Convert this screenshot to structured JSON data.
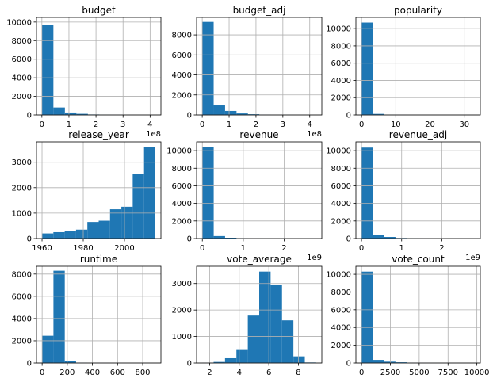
{
  "chart_data": [
    {
      "type": "bar",
      "title": "budget",
      "offset_text": "1e8",
      "xlim": [
        -0.2,
        4.4
      ],
      "ylim": [
        0,
        10500
      ],
      "xticks": [
        0,
        1,
        2,
        3,
        4
      ],
      "xtick_labels": [
        "0",
        "1",
        "2",
        "3",
        "4"
      ],
      "yticks": [
        0,
        2000,
        4000,
        6000,
        8000,
        10000
      ],
      "ytick_labels": [
        "0",
        "2000",
        "4000",
        "6000",
        "8000",
        "10000"
      ],
      "bin_edges": [
        0,
        0.425,
        0.85,
        1.275,
        1.7,
        2.125,
        2.55,
        2.975,
        3.4,
        3.825,
        4.25
      ],
      "values": [
        9700,
        800,
        260,
        120,
        50,
        20,
        8,
        3,
        1,
        1
      ],
      "grid": true,
      "color": "#1f77b4"
    },
    {
      "type": "bar",
      "title": "budget_adj",
      "offset_text": "1e8",
      "xlim": [
        -0.21,
        4.45
      ],
      "ylim": [
        0,
        9750
      ],
      "xticks": [
        0,
        1,
        2,
        3,
        4
      ],
      "xtick_labels": [
        "0",
        "1",
        "2",
        "3",
        "4"
      ],
      "yticks": [
        0,
        2000,
        4000,
        6000,
        8000
      ],
      "ytick_labels": [
        "0",
        "2000",
        "4000",
        "6000",
        "8000"
      ],
      "bin_edges": [
        0,
        0.425,
        0.85,
        1.275,
        1.7,
        2.125,
        2.55,
        2.975,
        3.4,
        3.825,
        4.25
      ],
      "values": [
        9300,
        950,
        400,
        150,
        70,
        30,
        10,
        5,
        2,
        1
      ],
      "grid": true,
      "color": "#1f77b4"
    },
    {
      "type": "bar",
      "title": "popularity",
      "offset_text": "",
      "xlim": [
        -1.65,
        34.7
      ],
      "ylim": [
        0,
        11300
      ],
      "xticks": [
        0,
        10,
        20,
        30
      ],
      "xtick_labels": [
        "0",
        "10",
        "20",
        "30"
      ],
      "yticks": [
        0,
        2000,
        4000,
        6000,
        8000,
        10000
      ],
      "ytick_labels": [
        "0",
        "2000",
        "4000",
        "6000",
        "8000",
        "10000"
      ],
      "bin_edges": [
        0,
        3.3,
        6.6,
        9.9,
        13.2,
        16.5,
        19.8,
        23.1,
        26.4,
        29.7,
        33.0
      ],
      "values": [
        10700,
        120,
        25,
        8,
        3,
        1,
        1,
        0,
        0,
        1
      ],
      "grid": true,
      "color": "#1f77b4"
    },
    {
      "type": "bar",
      "title": "release_year",
      "offset_text": "",
      "xlim": [
        1957.3,
        2017.7
      ],
      "ylim": [
        0,
        3800
      ],
      "xticks": [
        1960,
        1980,
        2000
      ],
      "xtick_labels": [
        "1960",
        "1980",
        "2000"
      ],
      "yticks": [
        0,
        1000,
        2000,
        3000
      ],
      "ytick_labels": [
        "0",
        "1000",
        "2000",
        "3000"
      ],
      "bin_edges": [
        1960,
        1965.5,
        1971,
        1976.5,
        1982,
        1987.5,
        1993,
        1998.5,
        2004,
        2009.5,
        2015
      ],
      "values": [
        200,
        250,
        300,
        350,
        650,
        700,
        1150,
        1250,
        2550,
        3600
      ],
      "grid": true,
      "color": "#1f77b4"
    },
    {
      "type": "bar",
      "title": "revenue",
      "offset_text": "1e9",
      "xlim": [
        -0.14,
        2.92
      ],
      "ylim": [
        0,
        11000
      ],
      "xticks": [
        0,
        1,
        2
      ],
      "xtick_labels": [
        "0",
        "1",
        "2"
      ],
      "yticks": [
        0,
        2000,
        4000,
        6000,
        8000,
        10000
      ],
      "ytick_labels": [
        "0",
        "2000",
        "4000",
        "6000",
        "8000",
        "10000"
      ],
      "bin_edges": [
        0,
        0.278,
        0.556,
        0.834,
        1.112,
        1.39,
        1.668,
        1.946,
        2.224,
        2.502,
        2.78
      ],
      "values": [
        10450,
        280,
        90,
        35,
        10,
        5,
        2,
        1,
        1,
        1
      ],
      "grid": true,
      "color": "#1f77b4"
    },
    {
      "type": "bar",
      "title": "revenue_adj",
      "offset_text": "1e9",
      "xlim": [
        -0.14,
        2.96
      ],
      "ylim": [
        0,
        11000
      ],
      "xticks": [
        0,
        1,
        2
      ],
      "xtick_labels": [
        "0",
        "1",
        "2"
      ],
      "yticks": [
        0,
        2000,
        4000,
        6000,
        8000,
        10000
      ],
      "ytick_labels": [
        "0",
        "2000",
        "4000",
        "6000",
        "8000",
        "10000"
      ],
      "bin_edges": [
        0,
        0.282,
        0.564,
        0.846,
        1.128,
        1.41,
        1.692,
        1.974,
        2.256,
        2.538,
        2.82
      ],
      "values": [
        10350,
        380,
        180,
        60,
        20,
        8,
        3,
        1,
        1,
        1
      ],
      "grid": true,
      "color": "#1f77b4"
    },
    {
      "type": "bar",
      "title": "runtime",
      "offset_text": "",
      "xlim": [
        -45,
        945
      ],
      "ylim": [
        0,
        8700
      ],
      "xticks": [
        0,
        200,
        400,
        600,
        800
      ],
      "xtick_labels": [
        "0",
        "200",
        "400",
        "600",
        "800"
      ],
      "yticks": [
        0,
        2000,
        4000,
        6000,
        8000
      ],
      "ytick_labels": [
        "0",
        "2000",
        "4000",
        "6000",
        "8000"
      ],
      "bin_edges": [
        0,
        90,
        180,
        270,
        360,
        450,
        540,
        630,
        720,
        810,
        900
      ],
      "values": [
        2450,
        8300,
        150,
        30,
        10,
        5,
        3,
        2,
        1,
        1
      ],
      "grid": true,
      "color": "#1f77b4"
    },
    {
      "type": "bar",
      "title": "vote_average",
      "offset_text": "",
      "xlim": [
        1.12,
        9.58
      ],
      "ylim": [
        0,
        3650
      ],
      "xticks": [
        2,
        4,
        6,
        8
      ],
      "xtick_labels": [
        "2",
        "4",
        "6",
        "8"
      ],
      "yticks": [
        0,
        1000,
        2000,
        3000
      ],
      "ytick_labels": [
        "0",
        "1000",
        "2000",
        "3000"
      ],
      "bin_edges": [
        1.5,
        2.27,
        3.04,
        3.81,
        4.58,
        5.35,
        6.12,
        6.89,
        7.66,
        8.43,
        9.2
      ],
      "values": [
        10,
        40,
        180,
        520,
        1790,
        3450,
        2950,
        1610,
        250,
        20
      ],
      "grid": true,
      "color": "#1f77b4"
    },
    {
      "type": "bar",
      "title": "vote_count",
      "offset_text": "",
      "xlim": [
        -490,
        10300
      ],
      "ylim": [
        0,
        10900
      ],
      "xticks": [
        0,
        2500,
        5000,
        7500,
        10000
      ],
      "xtick_labels": [
        "0",
        "2500",
        "5000",
        "7500",
        "10000"
      ],
      "yticks": [
        0,
        2000,
        4000,
        6000,
        8000,
        10000
      ],
      "ytick_labels": [
        "0",
        "2000",
        "4000",
        "6000",
        "8000",
        "10000"
      ],
      "bin_edges": [
        0,
        980,
        1960,
        2940,
        3920,
        4900,
        5880,
        6860,
        7840,
        8820,
        9800
      ],
      "values": [
        10300,
        350,
        150,
        80,
        30,
        10,
        5,
        2,
        1,
        1
      ],
      "grid": true,
      "color": "#1f77b4"
    }
  ]
}
